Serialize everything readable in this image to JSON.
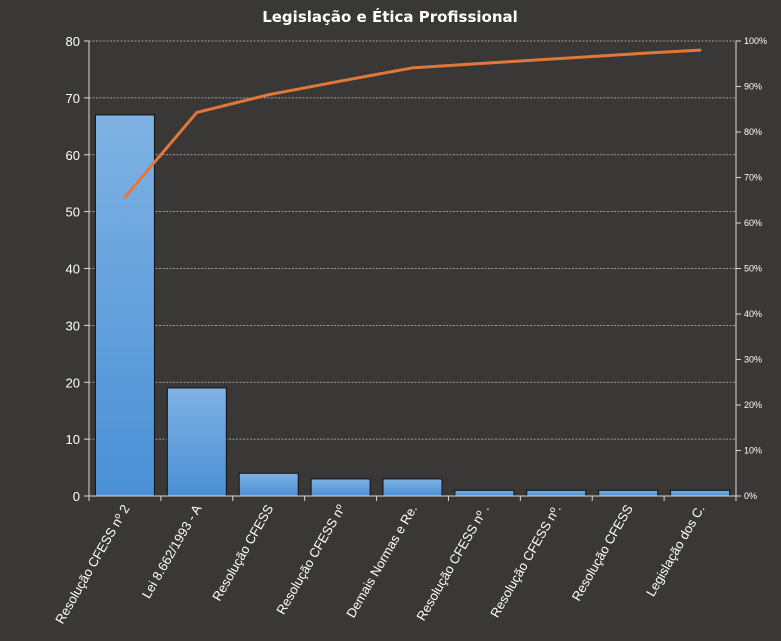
{
  "chart_data": {
    "type": "bar",
    "title": "Legislação  e  Ética  Profissional",
    "categories": [
      "Resolução CFESS nº 2",
      "Lei 8.662/1993 - A",
      "Resolução CFESS",
      "Resolução CFESS nº",
      "Demais Normas e Re.",
      "Resolução CFESS nº .",
      "Resolução CFESS nº.",
      "Resolução CFESS",
      "Legislação dos C."
    ],
    "values": [
      67,
      19,
      4,
      3,
      3,
      1,
      1,
      1,
      1
    ],
    "cumulative_percent": [
      65.7,
      84.3,
      88.2,
      91.2,
      94.1,
      95.1,
      96.1,
      97.1,
      98.0
    ],
    "ylim": [
      0,
      80
    ],
    "yticks": [
      0,
      10,
      20,
      30,
      40,
      50,
      60,
      70,
      80
    ],
    "y2lim": [
      0,
      100
    ],
    "y2ticks": [
      "0%",
      "10%",
      "20%",
      "30%",
      "40%",
      "50%",
      "60%",
      "70%",
      "80%",
      "90%",
      "100%"
    ],
    "grid": true,
    "xlabel": "",
    "ylabel": "",
    "colors": {
      "background": "#3a3836",
      "bar": "#4a90d6",
      "bar_light": "#7fb2e3",
      "line": "#e0783a",
      "text": "#ffffff"
    }
  }
}
